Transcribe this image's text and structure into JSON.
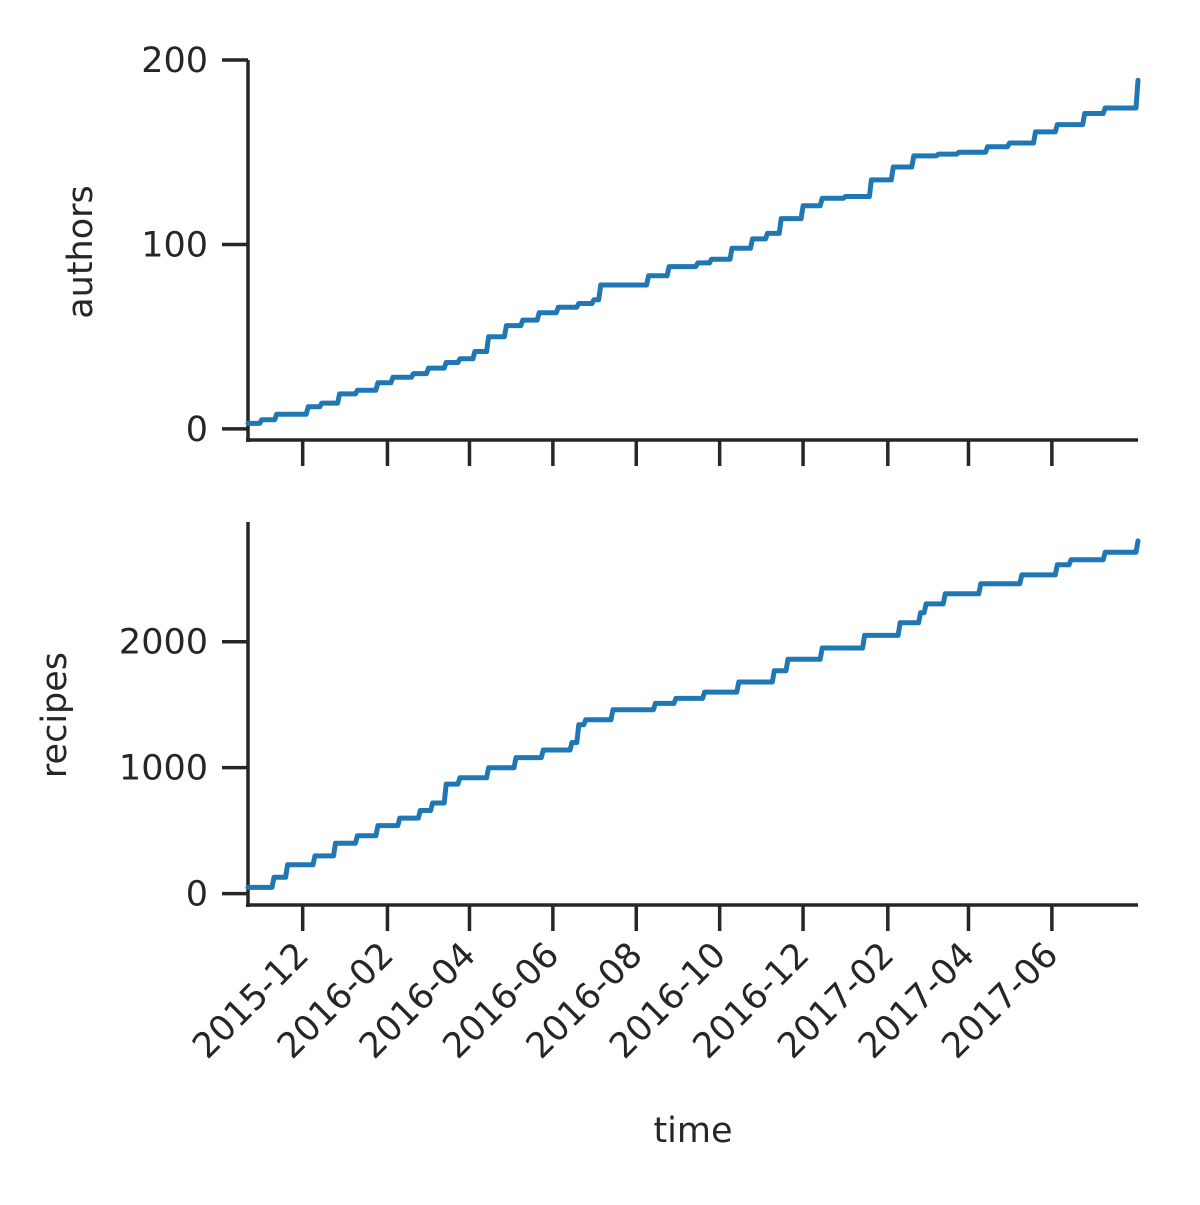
{
  "colors": {
    "series": "#1f77b4",
    "axis": "#262626",
    "background": "#ffffff"
  },
  "chart_data": [
    {
      "type": "line",
      "panel": "top",
      "xlabel": "",
      "ylabel": "authors",
      "grid": false,
      "xlim": [
        "2015-10-22",
        "2017-08-03"
      ],
      "ylim": [
        -6,
        200
      ],
      "y_ticks": [
        0,
        100,
        200
      ],
      "x_ticks": [
        "2015-12",
        "2016-02",
        "2016-04",
        "2016-06",
        "2016-08",
        "2016-10",
        "2016-12",
        "2017-02",
        "2017-04",
        "2017-06"
      ],
      "x_tick_labels_visible": false,
      "series": [
        {
          "x": [
            "2015-10-22",
            "2015-11-01",
            "2015-11-12",
            "2015-11-22",
            "2015-12-05",
            "2015-12-15",
            "2015-12-28",
            "2016-01-10",
            "2016-01-25",
            "2016-02-05",
            "2016-02-20",
            "2016-03-02",
            "2016-03-15",
            "2016-03-25",
            "2016-04-05",
            "2016-04-15",
            "2016-04-28",
            "2016-05-10",
            "2016-05-22",
            "2016-06-05",
            "2016-06-20",
            "2016-07-01",
            "2016-07-06",
            "2016-08-01",
            "2016-08-10",
            "2016-08-25",
            "2016-09-15",
            "2016-09-25",
            "2016-10-10",
            "2016-10-25",
            "2016-11-05",
            "2016-11-15",
            "2016-12-01",
            "2016-12-15",
            "2017-01-01",
            "2017-01-20",
            "2017-02-05",
            "2017-02-20",
            "2017-03-10",
            "2017-03-25",
            "2017-04-15",
            "2017-05-01",
            "2017-05-20",
            "2017-06-05",
            "2017-06-25",
            "2017-07-10",
            "2017-08-03"
          ],
          "y": [
            3,
            5,
            8,
            8,
            12,
            14,
            19,
            21,
            25,
            28,
            30,
            33,
            36,
            38,
            42,
            50,
            56,
            59,
            63,
            66,
            68,
            70,
            78,
            78,
            83,
            88,
            90,
            92,
            98,
            103,
            106,
            114,
            121,
            125,
            126,
            135,
            142,
            148,
            149,
            150,
            153,
            155,
            161,
            165,
            171,
            174,
            189
          ]
        }
      ]
    },
    {
      "type": "line",
      "panel": "bottom",
      "xlabel": "time",
      "ylabel": "recipes",
      "grid": false,
      "xlim": [
        "2015-10-22",
        "2017-08-03"
      ],
      "ylim": [
        -90,
        2950
      ],
      "y_ticks": [
        0,
        1000,
        2000
      ],
      "x_ticks": [
        "2015-12",
        "2016-02",
        "2016-04",
        "2016-06",
        "2016-08",
        "2016-10",
        "2016-12",
        "2017-02",
        "2017-04",
        "2017-06"
      ],
      "series": [
        {
          "x": [
            "2015-10-22",
            "2015-11-10",
            "2015-11-20",
            "2015-12-10",
            "2015-12-25",
            "2016-01-10",
            "2016-01-25",
            "2016-02-10",
            "2016-02-25",
            "2016-03-05",
            "2016-03-15",
            "2016-03-25",
            "2016-04-15",
            "2016-05-05",
            "2016-05-25",
            "2016-06-15",
            "2016-06-20",
            "2016-06-25",
            "2016-07-15",
            "2016-08-15",
            "2016-08-30",
            "2016-09-20",
            "2016-10-15",
            "2016-11-10",
            "2016-11-20",
            "2016-12-15",
            "2017-01-15",
            "2017-02-10",
            "2017-02-25",
            "2017-03-01",
            "2017-03-15",
            "2017-04-10",
            "2017-05-10",
            "2017-06-05",
            "2017-06-15",
            "2017-07-10",
            "2017-08-03"
          ],
          "y": [
            50,
            130,
            230,
            300,
            400,
            460,
            540,
            600,
            660,
            720,
            870,
            920,
            1000,
            1080,
            1140,
            1200,
            1340,
            1380,
            1460,
            1510,
            1550,
            1600,
            1680,
            1770,
            1860,
            1950,
            2050,
            2150,
            2230,
            2300,
            2380,
            2460,
            2530,
            2610,
            2650,
            2710,
            2800
          ]
        }
      ]
    }
  ]
}
